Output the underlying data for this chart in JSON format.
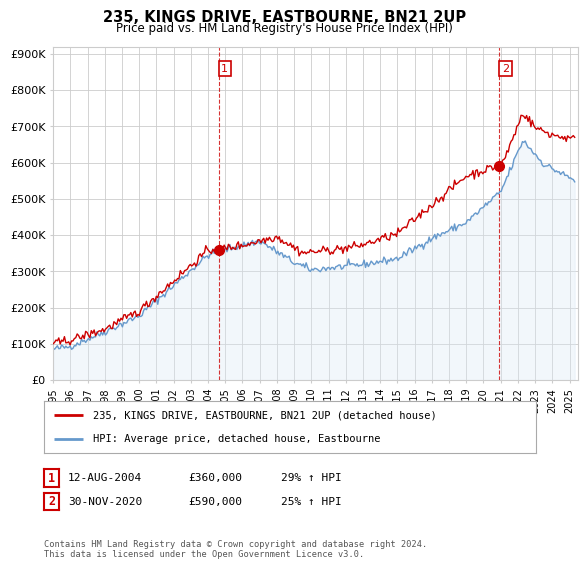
{
  "title": "235, KINGS DRIVE, EASTBOURNE, BN21 2UP",
  "subtitle": "Price paid vs. HM Land Registry's House Price Index (HPI)",
  "ylabel_ticks": [
    "£0",
    "£100K",
    "£200K",
    "£300K",
    "£400K",
    "£500K",
    "£600K",
    "£700K",
    "£800K",
    "£900K"
  ],
  "ytick_values": [
    0,
    100000,
    200000,
    300000,
    400000,
    500000,
    600000,
    700000,
    800000,
    900000
  ],
  "ylim": [
    0,
    920000
  ],
  "xlim_start": 1995.0,
  "xlim_end": 2025.5,
  "xlabel_years": [
    "1995",
    "1996",
    "1997",
    "1998",
    "1999",
    "2000",
    "2001",
    "2002",
    "2003",
    "2004",
    "2005",
    "2006",
    "2007",
    "2008",
    "2009",
    "2010",
    "2011",
    "2012",
    "2013",
    "2014",
    "2015",
    "2016",
    "2017",
    "2018",
    "2019",
    "2020",
    "2021",
    "2022",
    "2023",
    "2024",
    "2025"
  ],
  "sale1_x": 2004.62,
  "sale1_y": 360000,
  "sale2_x": 2020.92,
  "sale2_y": 590000,
  "annotation1_label": "1",
  "annotation2_label": "2",
  "legend_line1": "235, KINGS DRIVE, EASTBOURNE, BN21 2UP (detached house)",
  "legend_line2": "HPI: Average price, detached house, Eastbourne",
  "table_row1": [
    "1",
    "12-AUG-2004",
    "£360,000",
    "29% ↑ HPI"
  ],
  "table_row2": [
    "2",
    "30-NOV-2020",
    "£590,000",
    "25% ↑ HPI"
  ],
  "footnote": "Contains HM Land Registry data © Crown copyright and database right 2024.\nThis data is licensed under the Open Government Licence v3.0.",
  "red_color": "#cc0000",
  "blue_color": "#6699cc",
  "fill_color": "#dce9f5",
  "grid_color": "#cccccc",
  "background_color": "#ffffff"
}
